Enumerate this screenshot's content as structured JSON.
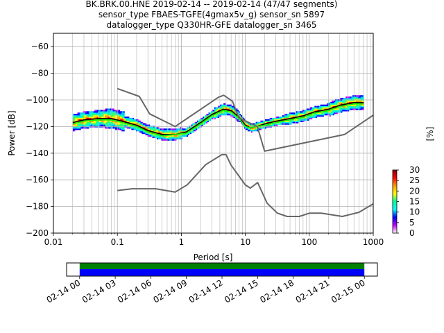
{
  "title_lines": [
    "BK.BRK.00.HNE   2019-02-14 -- 2019-02-14  (47/47 segments)",
    "sensor_type FBAES-TGFE(4gmax5v_g) sensor_sn 5897",
    "datalogger_type Q330HR-GFE datalogger_sn 3465"
  ],
  "chart_data": {
    "type": "heatmap",
    "xlabel": "Period [s]",
    "ylabel": "Power [dB]",
    "x_scale": "log",
    "xlim": [
      0.01,
      1000
    ],
    "ylim": [
      -200,
      -50
    ],
    "x_ticks": [
      0.01,
      0.1,
      1,
      10,
      100,
      1000
    ],
    "x_tick_labels": [
      "0.01",
      "0.1",
      "1",
      "10",
      "100",
      "1000"
    ],
    "y_ticks": [
      -200,
      -180,
      -160,
      -140,
      -120,
      -100,
      -80,
      -60
    ],
    "y_tick_labels": [
      "−200",
      "−180",
      "−160",
      "−140",
      "−120",
      "−100",
      "−80",
      "−60"
    ],
    "grid": true,
    "colorbar": {
      "label": "[%]",
      "range": [
        0,
        30
      ],
      "ticks": [
        0,
        5,
        10,
        15,
        20,
        25,
        30
      ],
      "colors": [
        "#ffffff",
        "#c000ff",
        "#0000ff",
        "#00ffff",
        "#00ff99",
        "#ffff00",
        "#ff9900",
        "#ff0000",
        "#800000"
      ]
    },
    "series": [
      {
        "role": "mean_psd",
        "color": "#000000",
        "x": [
          0.02,
          0.03,
          0.05,
          0.08,
          0.12,
          0.2,
          0.3,
          0.5,
          0.8,
          1.2,
          2,
          3,
          4.5,
          6,
          8,
          10,
          12,
          15,
          20,
          30,
          50,
          80,
          120,
          200,
          300,
          500,
          700
        ],
        "y": [
          -117,
          -115,
          -114,
          -114,
          -116,
          -119,
          -123,
          -126,
          -126,
          -124,
          -117,
          -111,
          -107,
          -108,
          -113,
          -119,
          -121,
          -120,
          -118,
          -116,
          -114,
          -112,
          -109,
          -107,
          -104,
          -102,
          -102
        ]
      },
      {
        "role": "mode_psd",
        "color": "#00ff00",
        "x": [
          0.02,
          0.03,
          0.05,
          0.08,
          0.12,
          0.2,
          0.3,
          0.5,
          0.8,
          1.2,
          2,
          3,
          4.5,
          6,
          8,
          10,
          12,
          15,
          20,
          30,
          50,
          80,
          120,
          200,
          300,
          500,
          700
        ],
        "y": [
          -118,
          -116,
          -115,
          -115,
          -117,
          -120,
          -124,
          -127,
          -126,
          -125,
          -118,
          -112,
          -108,
          -109,
          -114,
          -120,
          -121,
          -120,
          -119,
          -117,
          -115,
          -113,
          -110,
          -108,
          -105,
          -103,
          -103
        ]
      },
      {
        "role": "new_high_noise_model",
        "color": "#666666",
        "x": [
          0.1,
          0.22,
          0.32,
          0.8,
          3.8,
          4.6,
          6.3,
          7.9,
          15.4,
          20,
          354.8,
          1000
        ],
        "y": [
          -91.5,
          -97.4,
          -110.5,
          -120,
          -98,
          -96.5,
          -101,
          -113.5,
          -120,
          -138.5,
          -126,
          -111.5
        ]
      },
      {
        "role": "new_low_noise_model",
        "color": "#666666",
        "x": [
          0.1,
          0.17,
          0.4,
          0.8,
          1.24,
          2.4,
          4.3,
          5,
          6,
          10,
          12,
          15.6,
          21.9,
          31.6,
          45,
          70,
          101,
          154,
          328,
          600,
          1000
        ],
        "y": [
          -168,
          -166.7,
          -166.7,
          -169.2,
          -163.7,
          -148.6,
          -141.1,
          -141.1,
          -149,
          -163.8,
          -166.2,
          -162.1,
          -177.5,
          -185,
          -187.5,
          -187.5,
          -185,
          -185,
          -187.5,
          -184.4,
          -178
        ]
      }
    ],
    "timeline": {
      "tick_labels": [
        "02-14 00",
        "02-14 03",
        "02-14 06",
        "02-14 09",
        "02-14 12",
        "02-14 15",
        "02-14 18",
        "02-14 21",
        "02-15 00"
      ],
      "range_hours": [
        -1.1,
        25.1
      ],
      "data_coverage_hours": [
        0,
        24
      ],
      "gaps": [],
      "colors": {
        "coverage": "#008000",
        "psd": "#0000ff"
      }
    }
  }
}
